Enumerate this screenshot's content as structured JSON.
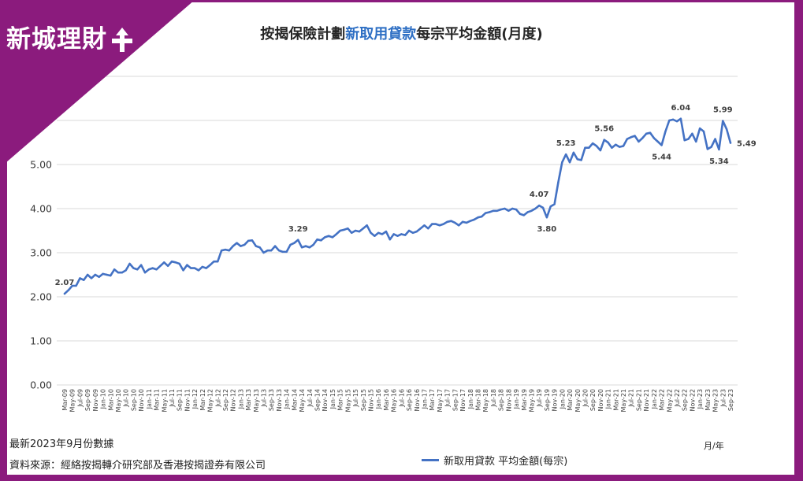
{
  "brand": {
    "logo_text": "新城理財",
    "icon": "plus-arrow-icon"
  },
  "colors": {
    "frame": "#8b1b7d",
    "title_highlight": "#2e6fc4",
    "grid": "#d9d9d9",
    "card": "#ffffff"
  },
  "footnotes": {
    "data_date": "最新2023年9月份數據",
    "source": "資料來源：經絡按揭轉介研究部及香港按揭證券有限公司"
  },
  "chart_data": {
    "type": "line",
    "title_parts": {
      "before": "按揭保險計劃",
      "highlight": "新取用貸款",
      "after": "每宗平均金額(月度)"
    },
    "xlabel": "月/年",
    "ylabel": "",
    "ylim": [
      0,
      7
    ],
    "ystep": 1,
    "grid": true,
    "legend": "bottom",
    "ytick_labels": [
      "0.00",
      "1.00",
      "2.00",
      "3.00",
      "4.00",
      "5.00"
    ],
    "x": [
      "Mar-09",
      "Apr-09",
      "May-09",
      "Jun-09",
      "Jul-09",
      "Aug-09",
      "Sep-09",
      "Oct-09",
      "Nov-09",
      "Dec-09",
      "Jan-10",
      "Feb-10",
      "Mar-10",
      "Apr-10",
      "May-10",
      "Jun-10",
      "Jul-10",
      "Aug-10",
      "Sep-10",
      "Oct-10",
      "Nov-10",
      "Dec-10",
      "Jan-11",
      "Feb-11",
      "Mar-11",
      "Apr-11",
      "May-11",
      "Jun-11",
      "Jul-11",
      "Aug-11",
      "Sep-11",
      "Oct-11",
      "Nov-11",
      "Dec-11",
      "Jan-12",
      "Feb-12",
      "Mar-12",
      "Apr-12",
      "May-12",
      "Jun-12",
      "Jul-12",
      "Aug-12",
      "Sep-12",
      "Oct-12",
      "Nov-12",
      "Dec-12",
      "Jan-13",
      "Feb-13",
      "Mar-13",
      "Apr-13",
      "May-13",
      "Jun-13",
      "Jul-13",
      "Aug-13",
      "Sep-13",
      "Oct-13",
      "Nov-13",
      "Dec-13",
      "Jan-14",
      "Feb-14",
      "Mar-14",
      "Apr-14",
      "May-14",
      "Jun-14",
      "Jul-14",
      "Aug-14",
      "Sep-14",
      "Oct-14",
      "Nov-14",
      "Dec-14",
      "Jan-15",
      "Feb-15",
      "Mar-15",
      "Apr-15",
      "May-15",
      "Jun-15",
      "Jul-15",
      "Aug-15",
      "Sep-15",
      "Oct-15",
      "Nov-15",
      "Dec-15",
      "Jan-16",
      "Feb-16",
      "Mar-16",
      "Apr-16",
      "May-16",
      "Jun-16",
      "Jul-16",
      "Aug-16",
      "Sep-16",
      "Oct-16",
      "Nov-16",
      "Dec-16",
      "Jan-17",
      "Feb-17",
      "Mar-17",
      "Apr-17",
      "May-17",
      "Jun-17",
      "Jul-17",
      "Aug-17",
      "Sep-17",
      "Oct-17",
      "Nov-17",
      "Dec-17",
      "Jan-18",
      "Feb-18",
      "Mar-18",
      "Apr-18",
      "May-18",
      "Jun-18",
      "Jul-18",
      "Aug-18",
      "Sep-18",
      "Oct-18",
      "Nov-18",
      "Dec-18",
      "Jan-19",
      "Feb-19",
      "Mar-19",
      "Apr-19",
      "May-19",
      "Jun-19",
      "Jul-19",
      "Aug-19",
      "Sep-19",
      "Oct-19",
      "Nov-19",
      "Dec-19",
      "Jan-20",
      "Feb-20",
      "Mar-20",
      "Apr-20",
      "May-20",
      "Jun-20",
      "Jul-20",
      "Aug-20",
      "Sep-20",
      "Oct-20",
      "Nov-20",
      "Dec-20",
      "Jan-21",
      "Feb-21",
      "Mar-21",
      "Apr-21",
      "May-21",
      "Jun-21",
      "Jul-21",
      "Aug-21",
      "Sep-21",
      "Oct-21",
      "Nov-21",
      "Dec-21",
      "Jan-22",
      "Feb-22",
      "Mar-22",
      "Apr-22",
      "May-22",
      "Jun-22",
      "Jul-22",
      "Aug-22",
      "Sep-22",
      "Oct-22",
      "Nov-22",
      "Dec-22",
      "Jan-23",
      "Feb-23",
      "Mar-23",
      "Apr-23",
      "May-23",
      "Jun-23",
      "Jul-23",
      "Aug-23",
      "Sep-23"
    ],
    "xticks": [
      "Mar-09",
      "May-09",
      "Jul-09",
      "Sep-09",
      "Nov-09",
      "Jan-10",
      "Mar-10",
      "May-10",
      "Jul-10",
      "Sep-10",
      "Nov-10",
      "Jan-11",
      "Mar-11",
      "May-11",
      "Jul-11",
      "Sep-11",
      "Nov-11",
      "Jan-12",
      "Mar-12",
      "May-12",
      "Jul-12",
      "Sep-12",
      "Nov-12",
      "Jan-13",
      "Mar-13",
      "May-13",
      "Jul-13",
      "Sep-13",
      "Nov-13",
      "Jan-14",
      "Mar-14",
      "May-14",
      "Jul-14",
      "Sep-14",
      "Nov-14",
      "Jan-15",
      "Mar-15",
      "May-15",
      "Jul-15",
      "Sep-15",
      "Nov-15",
      "Jan-16",
      "Mar-16",
      "May-16",
      "Jul-16",
      "Sep-16",
      "Nov-16",
      "Jan-17",
      "Mar-17",
      "May-17",
      "Jul-17",
      "Sep-17",
      "Nov-17",
      "Jan-18",
      "Mar-18",
      "May-18",
      "Jul-18",
      "Sep-18",
      "Nov-18",
      "Jan-19",
      "Mar-19",
      "May-19",
      "Jul-19",
      "Sep-19",
      "Nov-19",
      "Jan-20",
      "Mar-20",
      "May-20",
      "Jul-20",
      "Sep-20",
      "Nov-20",
      "Jan-21",
      "Mar-21",
      "May-21",
      "Jul-21",
      "Sep-21",
      "Nov-21",
      "Jan-22",
      "Mar-22",
      "May-22",
      "Jul-22",
      "Sep-22",
      "Nov-22",
      "Jan-23",
      "Mar-23",
      "May-23",
      "Jul-23",
      "Sep-23"
    ],
    "series": [
      {
        "name": "新取用貸款 平均金額(每宗)",
        "color": "#4472c4",
        "values": [
          2.07,
          2.15,
          2.25,
          2.25,
          2.42,
          2.38,
          2.5,
          2.42,
          2.5,
          2.45,
          2.52,
          2.5,
          2.48,
          2.62,
          2.55,
          2.55,
          2.6,
          2.75,
          2.65,
          2.62,
          2.72,
          2.55,
          2.62,
          2.65,
          2.62,
          2.7,
          2.78,
          2.7,
          2.8,
          2.78,
          2.75,
          2.6,
          2.72,
          2.65,
          2.65,
          2.6,
          2.68,
          2.65,
          2.72,
          2.8,
          2.8,
          3.05,
          3.07,
          3.05,
          3.15,
          3.22,
          3.15,
          3.18,
          3.27,
          3.28,
          3.15,
          3.12,
          3.0,
          3.05,
          3.05,
          3.15,
          3.05,
          3.02,
          3.02,
          3.18,
          3.22,
          3.29,
          3.12,
          3.15,
          3.12,
          3.18,
          3.3,
          3.28,
          3.35,
          3.38,
          3.35,
          3.42,
          3.5,
          3.52,
          3.55,
          3.45,
          3.5,
          3.48,
          3.55,
          3.62,
          3.45,
          3.38,
          3.45,
          3.42,
          3.48,
          3.3,
          3.42,
          3.38,
          3.42,
          3.4,
          3.5,
          3.45,
          3.48,
          3.55,
          3.62,
          3.55,
          3.65,
          3.65,
          3.62,
          3.65,
          3.7,
          3.72,
          3.68,
          3.62,
          3.7,
          3.68,
          3.72,
          3.75,
          3.8,
          3.82,
          3.9,
          3.92,
          3.95,
          3.95,
          3.98,
          4.0,
          3.95,
          4.0,
          3.98,
          3.88,
          3.85,
          3.92,
          3.95,
          4.0,
          4.07,
          4.02,
          3.8,
          4.05,
          4.1,
          4.6,
          5.05,
          5.23,
          5.05,
          5.27,
          5.12,
          5.1,
          5.38,
          5.38,
          5.48,
          5.42,
          5.32,
          5.56,
          5.5,
          5.38,
          5.45,
          5.4,
          5.42,
          5.58,
          5.62,
          5.65,
          5.52,
          5.6,
          5.7,
          5.72,
          5.6,
          5.52,
          5.44,
          5.75,
          6.0,
          6.02,
          5.98,
          6.04,
          5.55,
          5.58,
          5.7,
          5.52,
          5.82,
          5.75,
          5.35,
          5.4,
          5.58,
          5.34,
          5.99,
          5.8,
          5.49
        ]
      }
    ],
    "data_labels": [
      {
        "x": "Mar-09",
        "text": "2.07",
        "position": "above"
      },
      {
        "x": "Apr-14",
        "text": "3.29",
        "position": "above"
      },
      {
        "x": "Jul-19",
        "text": "4.07",
        "position": "above"
      },
      {
        "x": "Sep-19",
        "text": "3.80",
        "position": "below"
      },
      {
        "x": "Feb-20",
        "text": "5.23",
        "position": "above"
      },
      {
        "x": "Dec-20",
        "text": "5.56",
        "position": "above"
      },
      {
        "x": "Mar-22",
        "text": "5.44",
        "position": "below"
      },
      {
        "x": "Aug-22",
        "text": "6.04",
        "position": "above"
      },
      {
        "x": "Jun-23",
        "text": "5.34",
        "position": "below"
      },
      {
        "x": "Jul-23",
        "text": "5.99",
        "position": "above"
      },
      {
        "x": "Sep-23",
        "text": "5.49",
        "position": "right"
      }
    ]
  }
}
